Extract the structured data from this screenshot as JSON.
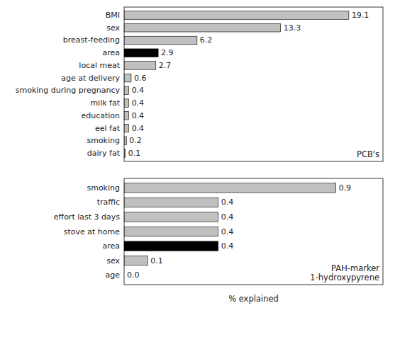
{
  "chart_data": [
    {
      "type": "bar",
      "orientation": "horizontal",
      "categories": [
        "BMI",
        "sex",
        "breast-feeding",
        "area",
        "local meat",
        "age at delivery",
        "smoking during pregnancy",
        "milk fat",
        "education",
        "eel fat",
        "smoking",
        "dairy fat"
      ],
      "values": [
        19.1,
        13.3,
        6.2,
        2.9,
        2.7,
        0.6,
        0.4,
        0.4,
        0.4,
        0.4,
        0.2,
        0.1
      ],
      "colors": [
        "#c0c0c0",
        "#c0c0c0",
        "#c0c0c0",
        "#000000",
        "#c0c0c0",
        "#c0c0c0",
        "#c0c0c0",
        "#c0c0c0",
        "#c0c0c0",
        "#c0c0c0",
        "#c0c0c0",
        "#c0c0c0"
      ],
      "annotation": "PCB's",
      "xlim": [
        0,
        22
      ],
      "data_labels": true,
      "tick_labels": "y"
    },
    {
      "type": "bar",
      "orientation": "horizontal",
      "categories": [
        "smoking",
        "traffic",
        "effort last 3 days",
        "stove at home",
        "area",
        "sex",
        "age"
      ],
      "values": [
        0.9,
        0.4,
        0.4,
        0.4,
        0.4,
        0.1,
        0.0
      ],
      "value_labels": [
        "0.9",
        "0.4",
        "0.4",
        "0.4",
        "0.4",
        "0.1",
        "0.0"
      ],
      "colors": [
        "#c0c0c0",
        "#c0c0c0",
        "#c0c0c0",
        "#c0c0c0",
        "#000000",
        "#c0c0c0",
        "#c0c0c0"
      ],
      "annotation": "PAH-marker\n1-hydroxypyrene",
      "xlim": [
        0,
        1.1
      ],
      "xlabel": "% explained",
      "data_labels": true,
      "tick_labels": "y"
    }
  ]
}
